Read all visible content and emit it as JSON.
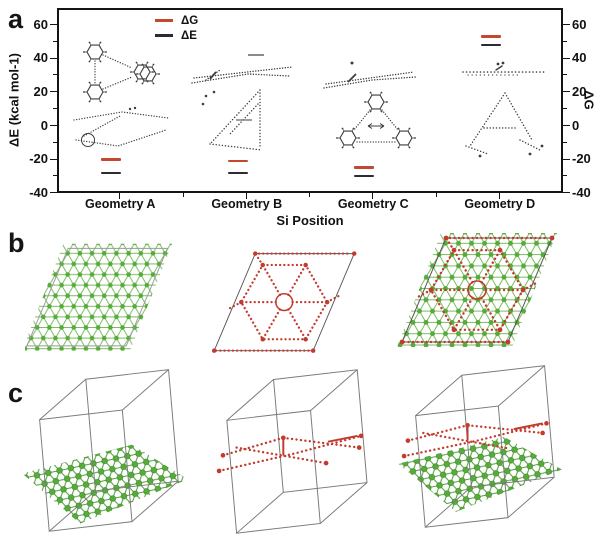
{
  "panels": {
    "a": {
      "label": "a"
    },
    "b": {
      "label": "b",
      "items": [
        "green substrate lattice, top view",
        "red silicene-like layer, top view",
        "combined layer on substrate, top view"
      ]
    },
    "c": {
      "label": "c",
      "items": [
        "green substrate slab inside unit cell",
        "red layer inside unit cell",
        "combined slab and layer inside unit cell"
      ]
    }
  },
  "chart_data": {
    "type": "scatter",
    "title": "",
    "xlabel": "Si Position",
    "ylabel_left": "ΔE (kcal mol-1)",
    "ylabel_right": "ΔG",
    "categories": [
      "Geometry A",
      "Geometry B",
      "Geometry C",
      "Geometry D"
    ],
    "ytick_labels": [
      "60",
      "40",
      "20",
      "0",
      "-20",
      "-40"
    ],
    "yticks": [
      60,
      40,
      20,
      0,
      -20,
      -40
    ],
    "yminorticks": [
      50,
      30,
      10,
      -10,
      -30
    ],
    "ylim": [
      -40,
      70
    ],
    "grid": false,
    "marker": "horizontal dash",
    "legend_position": "top-left inside",
    "legend": [
      {
        "label": "ΔG",
        "color": "#c4482f"
      },
      {
        "label": "ΔE",
        "color": "#2b2b35"
      }
    ],
    "series": [
      {
        "name": "ΔG",
        "color": "#c4482f",
        "values": [
          -20,
          -21,
          -25,
          53
        ]
      },
      {
        "name": "ΔE",
        "color": "#2b2b35",
        "values": [
          -28,
          -28,
          -30,
          48
        ]
      }
    ],
    "annotations": "skeletal molecular-structure insets drawn above each geometry label"
  },
  "colors": {
    "green_atom": "#56ab3c",
    "green_bond": "#79bb5e",
    "red_layer": "#c23b2e",
    "cell_edge": "#7a7a7a",
    "axis": "#141414"
  }
}
